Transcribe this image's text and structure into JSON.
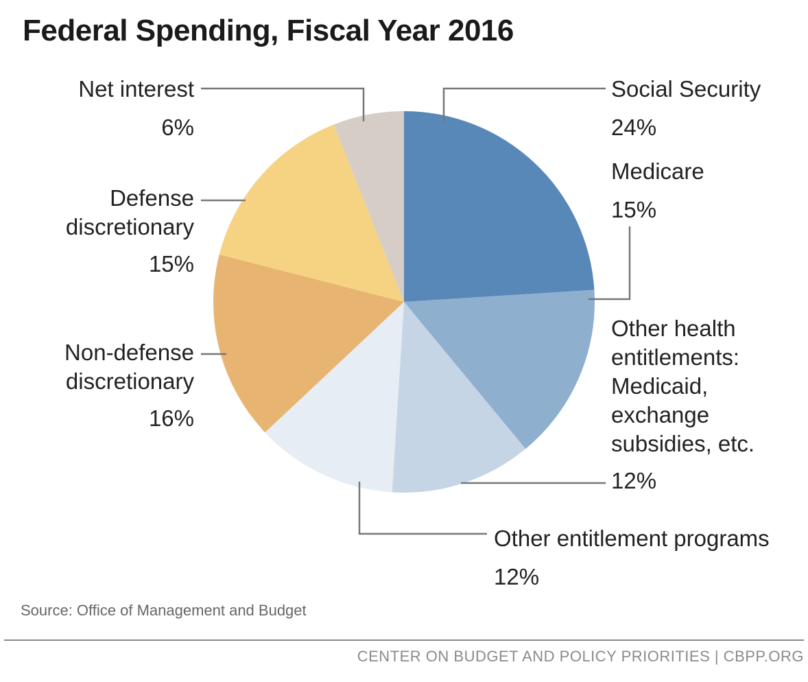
{
  "title": "Federal Spending, Fiscal Year 2016",
  "source": "Source: Office of Management and Budget",
  "footer": "CENTER ON BUDGET AND POLICY PRIORITIES | CBPP.ORG",
  "chart_data": {
    "type": "pie",
    "title": "Federal Spending, Fiscal Year 2016",
    "unit": "%",
    "slices": [
      {
        "id": "social-security",
        "label_lines": [
          "Social Security"
        ],
        "pct_label": "24%",
        "value": 24,
        "color": "#5888b8"
      },
      {
        "id": "medicare",
        "label_lines": [
          "Medicare"
        ],
        "pct_label": "15%",
        "value": 15,
        "color": "#8fafcf"
      },
      {
        "id": "other-health",
        "label_lines": [
          "Other health",
          "entitlements:",
          "Medicaid,",
          "exchange",
          "subsidies, etc."
        ],
        "pct_label": "12%",
        "value": 12,
        "color": "#c6d5e6"
      },
      {
        "id": "other-entitlement",
        "label_lines": [
          "Other entitlement programs"
        ],
        "pct_label": "12%",
        "value": 12,
        "color": "#e6edf4"
      },
      {
        "id": "non-defense",
        "label_lines": [
          "Non-defense",
          "discretionary"
        ],
        "pct_label": "16%",
        "value": 16,
        "color": "#e8b472"
      },
      {
        "id": "defense",
        "label_lines": [
          "Defense",
          "discretionary"
        ],
        "pct_label": "15%",
        "value": 15,
        "color": "#f6d382"
      },
      {
        "id": "net-interest",
        "label_lines": [
          "Net interest"
        ],
        "pct_label": "6%",
        "value": 6,
        "color": "#d5cdc6"
      }
    ]
  }
}
